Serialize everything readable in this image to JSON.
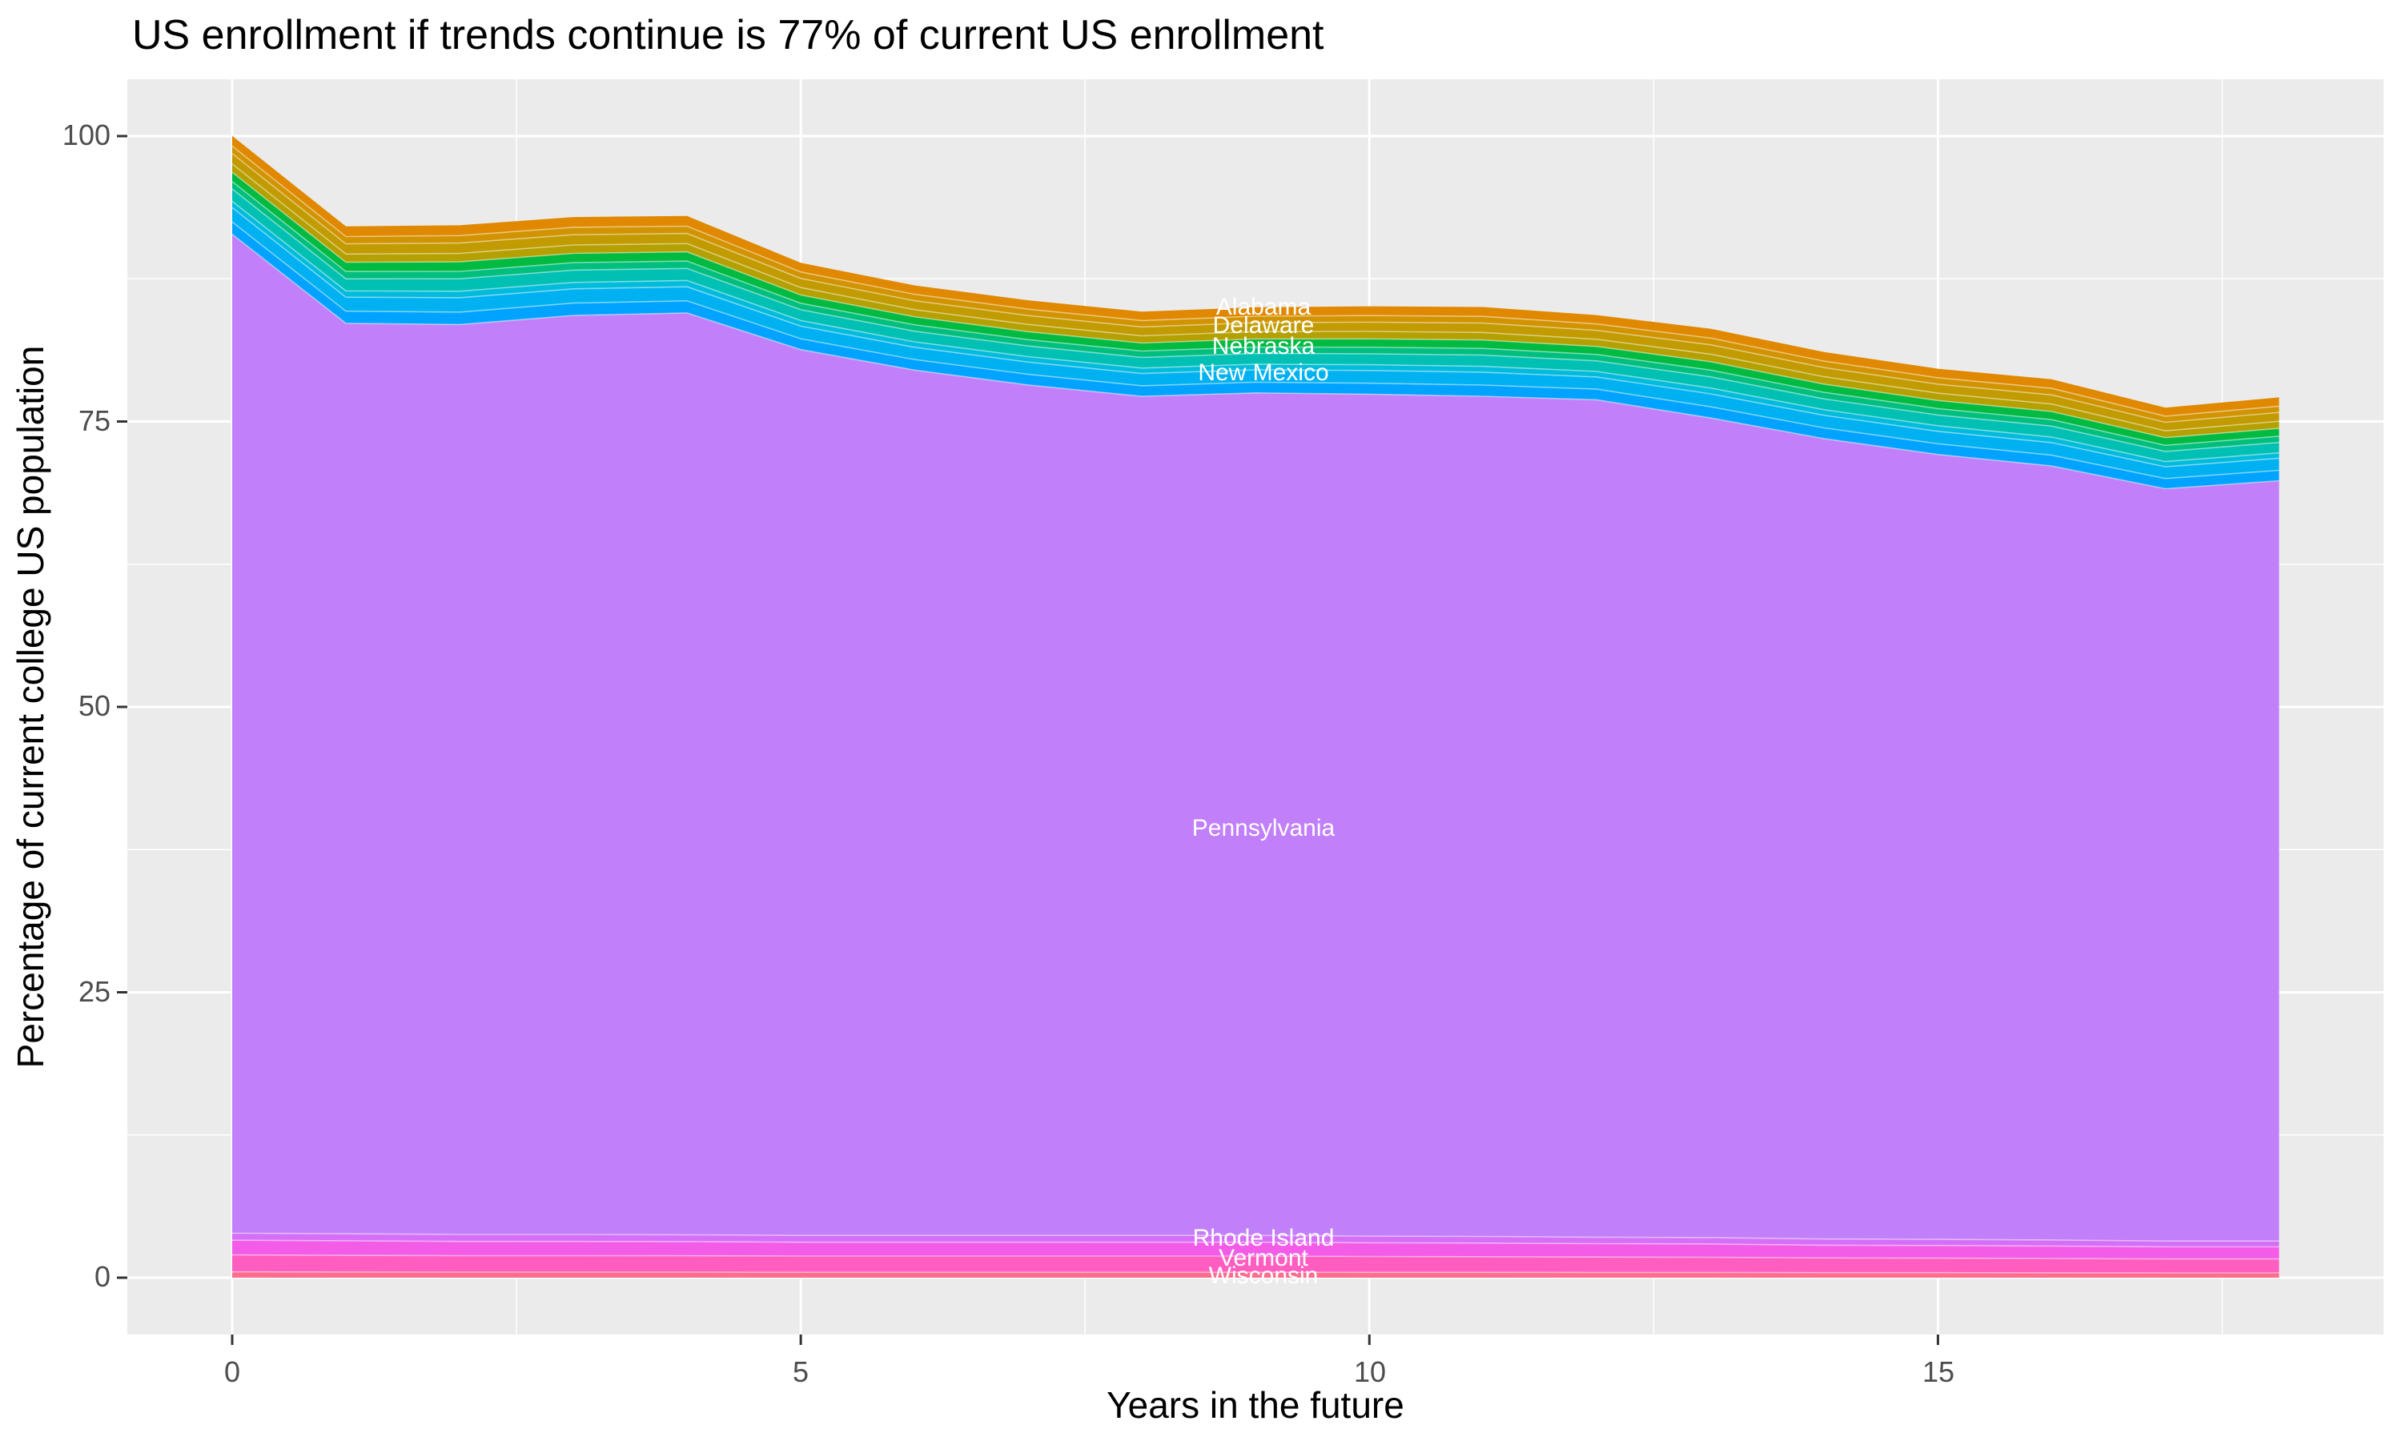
{
  "title": "US enrollment if trends continue is 77% of current US enrollment",
  "axes": {
    "x": {
      "title": "Years in the future",
      "tick_labels": [
        "0",
        "5",
        "10",
        "15"
      ],
      "tick_values": [
        0,
        5,
        10,
        15
      ],
      "minor_gridlines": [
        2.5,
        7.5,
        12.5,
        17.5
      ]
    },
    "y": {
      "title": "Percentage of current college US population",
      "tick_labels": [
        "100",
        "75",
        "50",
        "25",
        "0"
      ],
      "tick_values": [
        100,
        75,
        50,
        25,
        0
      ],
      "minor_gridlines": [
        12.5,
        37.5,
        62.5,
        87.5
      ]
    }
  },
  "area_labels": [
    {
      "text": "Alabama",
      "x_year": 9,
      "y_value": 84.9
    },
    {
      "text": "Delaware",
      "x_year": 9,
      "y_value": 83.3
    },
    {
      "text": "Nebraska",
      "x_year": 9,
      "y_value": 81.5
    },
    {
      "text": "New Mexico",
      "x_year": 9,
      "y_value": 79.2
    },
    {
      "text": "Pennsylvania",
      "x_year": 9,
      "y_value": 39.3
    },
    {
      "text": "Rhode Island",
      "x_year": 9,
      "y_value": 3.35
    },
    {
      "text": "Vermont",
      "x_year": 9,
      "y_value": 1.6
    },
    {
      "text": "Wisconsin",
      "x_year": 9,
      "y_value": 0.05
    }
  ],
  "style": {
    "panel_bg": "#EBEBEB",
    "grid_color": "#FFFFFF",
    "tick_mark_color": "#333333",
    "tick_text_color": "#4D4D4D",
    "title_color": "#000000",
    "area_label_color": "#FFFFFF",
    "band_outline": "rgba(255,255,255,0.45)"
  },
  "chart_data": {
    "type": "area",
    "stacked": true,
    "title": "US enrollment if trends continue is 77% of current US enrollment",
    "xlabel": "Years in the future",
    "ylabel": "Percentage of current college US population",
    "xlim": [
      0,
      18
    ],
    "ylim": [
      0,
      100
    ],
    "grid": true,
    "legend": "none",
    "x": [
      0,
      1,
      2,
      3,
      4,
      5,
      6,
      7,
      8,
      9,
      10,
      11,
      12,
      13,
      14,
      15,
      16,
      17,
      18
    ],
    "total_stack_height": [
      100.0,
      92.1,
      92.2,
      92.9,
      93.0,
      88.9,
      86.9,
      85.6,
      84.6,
      85.0,
      85.1,
      85.0,
      84.3,
      83.1,
      81.1,
      79.6,
      78.7,
      76.2,
      77.1
    ],
    "series_order": "bottom_to_top",
    "series": [
      {
        "name": "Wisconsin",
        "color": "#FF6D8E",
        "values": [
          0.51,
          0.5,
          0.49,
          0.49,
          0.49,
          0.48,
          0.48,
          0.48,
          0.48,
          0.48,
          0.47,
          0.47,
          0.46,
          0.46,
          0.44,
          0.44,
          0.43,
          0.42,
          0.42
        ]
      },
      {
        "name": "Vermont",
        "color": "#FF5EC0",
        "values": [
          1.48,
          1.46,
          1.44,
          1.44,
          1.43,
          1.41,
          1.41,
          1.41,
          1.41,
          1.41,
          1.39,
          1.37,
          1.35,
          1.33,
          1.29,
          1.27,
          1.25,
          1.22,
          1.22
        ]
      },
      {
        "name": "",
        "color": "#F35CE6",
        "values": [
          1.29,
          1.27,
          1.25,
          1.25,
          1.24,
          1.22,
          1.22,
          1.22,
          1.22,
          1.22,
          1.2,
          1.19,
          1.17,
          1.16,
          1.12,
          1.11,
          1.09,
          1.06,
          1.06
        ]
      },
      {
        "name": "Rhode Island",
        "color": "#D66FF8",
        "values": [
          0.62,
          0.62,
          0.61,
          0.61,
          0.6,
          0.59,
          0.59,
          0.59,
          0.59,
          0.59,
          0.58,
          0.58,
          0.57,
          0.56,
          0.54,
          0.54,
          0.53,
          0.51,
          0.51
        ]
      },
      {
        "name": "Pennsylvania",
        "color": "#C180FA",
        "values": [
          87.5,
          79.75,
          79.7,
          80.5,
          80.75,
          77.6,
          75.8,
          74.5,
          73.5,
          73.8,
          73.75,
          73.6,
          73.35,
          71.8,
          70.1,
          68.75,
          67.8,
          65.9,
          66.6
        ]
      },
      {
        "name": "",
        "color": "#00A3FF",
        "values": [
          1.08,
          1.06,
          1.09,
          1.08,
          1.06,
          0.95,
          0.93,
          0.93,
          0.93,
          0.94,
          0.96,
          0.98,
          0.93,
          0.98,
          0.95,
          0.94,
          0.95,
          0.89,
          0.91
        ]
      },
      {
        "name": "New Mexico",
        "color": "#00B1F2",
        "values": [
          1.25,
          1.23,
          1.26,
          1.25,
          1.23,
          1.1,
          1.07,
          1.07,
          1.07,
          1.09,
          1.12,
          1.13,
          1.07,
          1.13,
          1.1,
          1.09,
          1.1,
          1.03,
          1.06
        ]
      },
      {
        "name": "",
        "color": "#00BBDB",
        "values": [
          0.56,
          0.55,
          0.57,
          0.56,
          0.55,
          0.49,
          0.48,
          0.48,
          0.48,
          0.49,
          0.5,
          0.51,
          0.48,
          0.51,
          0.49,
          0.49,
          0.49,
          0.46,
          0.47
        ]
      },
      {
        "name": "Nebraska",
        "color": "#00C0B4",
        "values": [
          1.08,
          1.06,
          1.09,
          1.08,
          1.06,
          0.95,
          0.93,
          0.93,
          0.93,
          0.94,
          0.96,
          0.98,
          0.93,
          0.98,
          0.95,
          0.94,
          0.95,
          0.89,
          0.91
        ]
      },
      {
        "name": "",
        "color": "#00BE7E",
        "values": [
          0.65,
          0.64,
          0.65,
          0.65,
          0.64,
          0.57,
          0.56,
          0.56,
          0.56,
          0.56,
          0.58,
          0.59,
          0.56,
          0.59,
          0.57,
          0.56,
          0.57,
          0.53,
          0.55
        ]
      },
      {
        "name": "",
        "color": "#00BA42",
        "values": [
          0.82,
          0.81,
          0.83,
          0.82,
          0.81,
          0.72,
          0.7,
          0.7,
          0.7,
          0.71,
          0.73,
          0.74,
          0.7,
          0.74,
          0.72,
          0.71,
          0.72,
          0.67,
          0.69
        ]
      },
      {
        "name": "",
        "color": "#B4A000",
        "values": [
          0.73,
          0.72,
          0.74,
          0.73,
          0.72,
          0.65,
          0.63,
          0.63,
          0.63,
          0.64,
          0.65,
          0.66,
          0.63,
          0.66,
          0.65,
          0.64,
          0.65,
          0.6,
          0.62
        ]
      },
      {
        "name": "Delaware",
        "color": "#C29B00",
        "values": [
          0.9,
          0.89,
          0.91,
          0.9,
          0.89,
          0.8,
          0.78,
          0.78,
          0.78,
          0.79,
          0.81,
          0.82,
          0.78,
          0.82,
          0.8,
          0.79,
          0.8,
          0.75,
          0.77
        ]
      },
      {
        "name": "",
        "color": "#D19300",
        "values": [
          0.65,
          0.64,
          0.65,
          0.65,
          0.64,
          0.57,
          0.56,
          0.56,
          0.56,
          0.56,
          0.58,
          0.59,
          0.56,
          0.59,
          0.57,
          0.56,
          0.57,
          0.53,
          0.55
        ]
      },
      {
        "name": "Alabama",
        "color": "#E08900",
        "values": [
          0.9,
          0.89,
          0.91,
          0.9,
          0.89,
          0.8,
          0.78,
          0.78,
          0.78,
          0.79,
          0.81,
          0.82,
          0.78,
          0.82,
          0.8,
          0.79,
          0.8,
          0.75,
          0.77
        ]
      }
    ]
  }
}
